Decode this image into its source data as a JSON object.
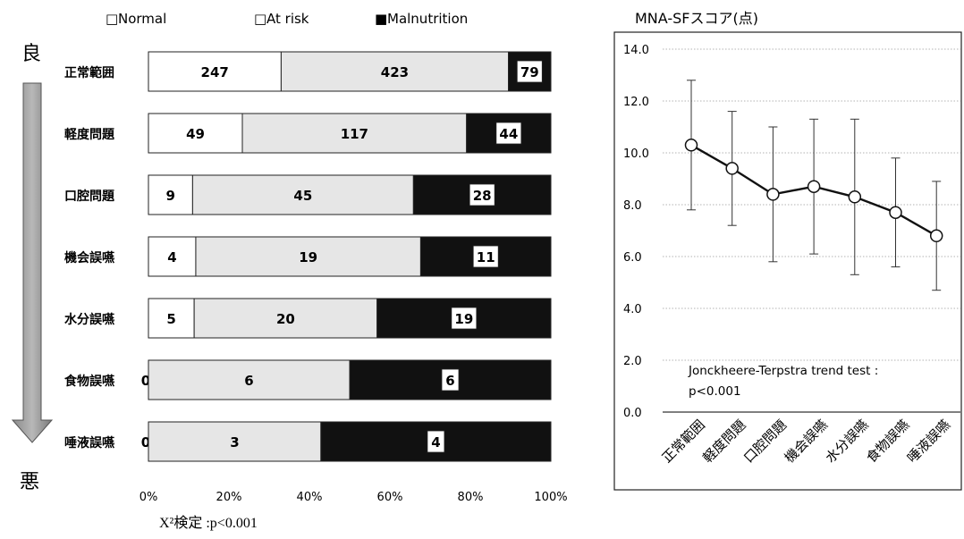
{
  "left_chart": {
    "legend": [
      {
        "name": "Normal",
        "symbol": "□",
        "fill": "#ffffff"
      },
      {
        "name": "At risk",
        "symbol": "□",
        "fill": "#e6e6e6"
      },
      {
        "name": "Malnutrition",
        "symbol": "■",
        "fill": "#111111"
      }
    ],
    "top_marker": "良",
    "bottom_marker": "悪",
    "footnote": "X²検定 :p<0.001"
  },
  "right_chart": {
    "title": "MNA-SFスコア(点)",
    "annotation_line1": "Jonckheere-Terpstra trend test :",
    "annotation_line2": "p<0.001"
  },
  "colors": {
    "normal": "#ffffff",
    "at_risk": "#e6e6e6",
    "malnutrition": "#111111",
    "line": "#111111"
  },
  "chart_data": [
    {
      "type": "bar",
      "orientation": "horizontal",
      "stacked": "percent",
      "categories": [
        "正常範囲",
        "軽度問題",
        "口腔問題",
        "機会誤嚥",
        "水分誤嚥",
        "食物誤嚥",
        "唾液誤嚥"
      ],
      "series": [
        {
          "name": "Normal",
          "values": [
            247,
            49,
            9,
            4,
            5,
            0,
            0
          ]
        },
        {
          "name": "At risk",
          "values": [
            423,
            117,
            45,
            19,
            20,
            6,
            3
          ]
        },
        {
          "name": "Malnutrition",
          "values": [
            79,
            44,
            28,
            11,
            19,
            6,
            4
          ]
        }
      ],
      "xticks": [
        "0%",
        "20%",
        "40%",
        "60%",
        "80%",
        "100%"
      ],
      "xlim": [
        0,
        100
      ],
      "legend": "top"
    },
    {
      "type": "line",
      "categories": [
        "正常範囲",
        "軽度問題",
        "口腔問題",
        "機会誤嚥",
        "水分誤嚥",
        "食物誤嚥",
        "唾液誤嚥"
      ],
      "values": [
        10.3,
        9.4,
        8.4,
        8.7,
        8.3,
        7.7,
        6.8
      ],
      "error": [
        2.5,
        2.2,
        2.6,
        2.6,
        3.0,
        2.1,
        2.1
      ],
      "yticks": [
        "0.0",
        "2.0",
        "4.0",
        "6.0",
        "8.0",
        "10.0",
        "12.0",
        "14.0"
      ],
      "ylim": [
        0,
        14
      ],
      "grid": true
    }
  ]
}
